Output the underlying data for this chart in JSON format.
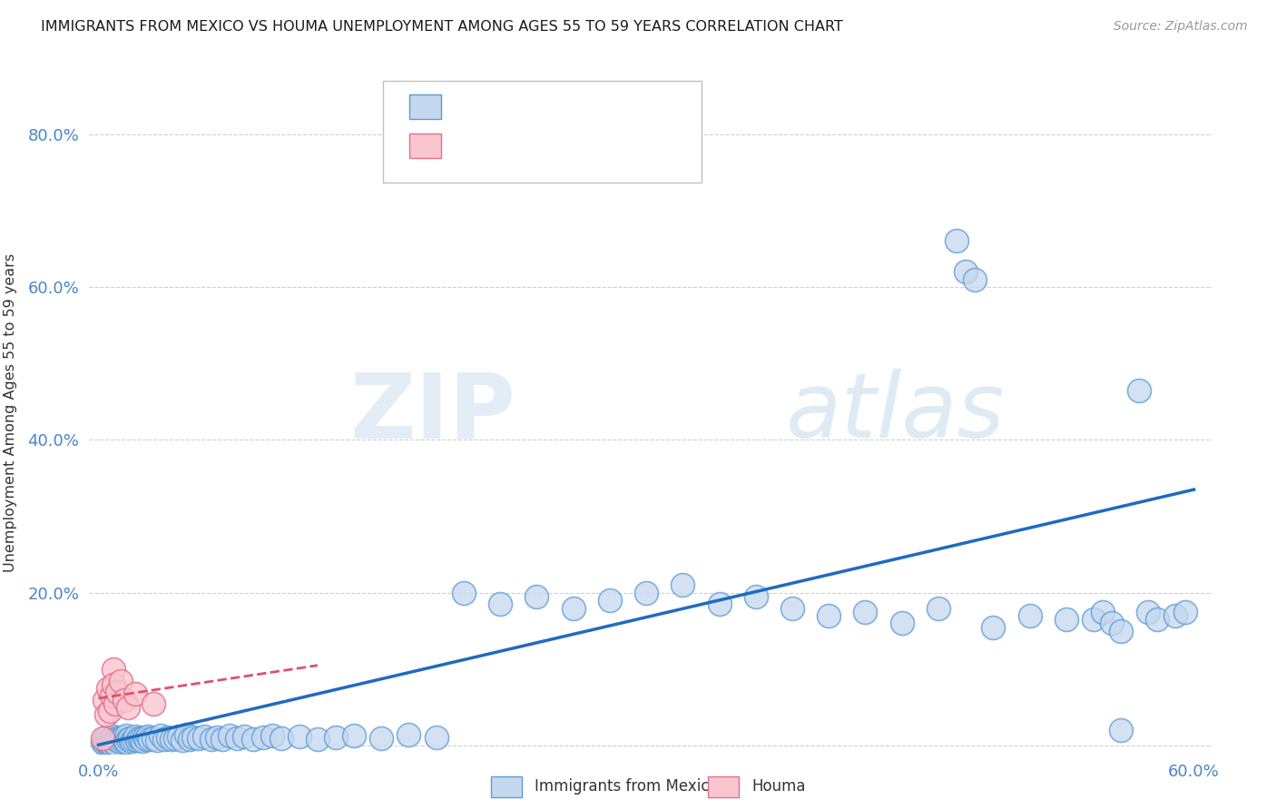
{
  "title": "IMMIGRANTS FROM MEXICO VS HOUMA UNEMPLOYMENT AMONG AGES 55 TO 59 YEARS CORRELATION CHART",
  "source": "Source: ZipAtlas.com",
  "xlabel_blue": "Immigrants from Mexico",
  "xlabel_pink": "Houma",
  "ylabel": "Unemployment Among Ages 55 to 59 years",
  "xlim": [
    -0.005,
    0.61
  ],
  "ylim": [
    -0.01,
    0.88
  ],
  "xticks": [
    0.0,
    0.1,
    0.2,
    0.3,
    0.4,
    0.5,
    0.6
  ],
  "yticks": [
    0.0,
    0.2,
    0.4,
    0.6,
    0.8
  ],
  "blue_color": "#c5d8f0",
  "blue_edge_color": "#5b9bd5",
  "pink_color": "#f9c6d0",
  "pink_edge_color": "#e07090",
  "blue_line_color": "#1f6bbf",
  "pink_line_color": "#e05070",
  "tick_color": "#4a86c8",
  "grid_color": "#d0d0d0",
  "watermark_color": "#dce8f4",
  "background": "#ffffff",
  "blue_trend": [
    0.0,
    0.001,
    0.6,
    0.335
  ],
  "pink_trend": [
    0.0,
    0.062,
    0.12,
    0.105
  ],
  "blue_x": [
    0.002,
    0.003,
    0.003,
    0.004,
    0.004,
    0.004,
    0.005,
    0.005,
    0.005,
    0.005,
    0.006,
    0.006,
    0.007,
    0.007,
    0.008,
    0.008,
    0.009,
    0.009,
    0.01,
    0.01,
    0.011,
    0.012,
    0.013,
    0.014,
    0.015,
    0.015,
    0.016,
    0.017,
    0.018,
    0.019,
    0.02,
    0.021,
    0.022,
    0.023,
    0.024,
    0.025,
    0.026,
    0.027,
    0.028,
    0.03,
    0.032,
    0.034,
    0.036,
    0.038,
    0.04,
    0.042,
    0.044,
    0.046,
    0.048,
    0.05,
    0.052,
    0.055,
    0.058,
    0.062,
    0.065,
    0.068,
    0.072,
    0.076,
    0.08,
    0.085,
    0.09,
    0.095,
    0.1,
    0.11,
    0.12,
    0.13,
    0.14,
    0.155,
    0.17,
    0.185,
    0.2,
    0.22,
    0.24,
    0.26,
    0.28,
    0.3,
    0.32,
    0.34,
    0.36,
    0.38,
    0.4,
    0.42,
    0.44,
    0.46,
    0.47,
    0.475,
    0.48,
    0.49,
    0.51,
    0.53,
    0.545,
    0.55,
    0.555,
    0.56,
    0.56,
    0.57,
    0.575,
    0.58,
    0.59,
    0.595
  ],
  "blue_y": [
    0.005,
    0.008,
    0.003,
    0.006,
    0.01,
    0.004,
    0.007,
    0.012,
    0.003,
    0.005,
    0.008,
    0.004,
    0.009,
    0.006,
    0.012,
    0.005,
    0.008,
    0.003,
    0.01,
    0.007,
    0.006,
    0.009,
    0.011,
    0.007,
    0.013,
    0.005,
    0.008,
    0.01,
    0.006,
    0.009,
    0.012,
    0.007,
    0.01,
    0.008,
    0.006,
    0.011,
    0.008,
    0.012,
    0.009,
    0.01,
    0.007,
    0.013,
    0.009,
    0.011,
    0.008,
    0.01,
    0.012,
    0.007,
    0.014,
    0.009,
    0.011,
    0.01,
    0.012,
    0.008,
    0.011,
    0.009,
    0.013,
    0.01,
    0.012,
    0.008,
    0.011,
    0.013,
    0.01,
    0.012,
    0.009,
    0.011,
    0.013,
    0.01,
    0.014,
    0.011,
    0.2,
    0.185,
    0.195,
    0.18,
    0.19,
    0.2,
    0.21,
    0.185,
    0.195,
    0.18,
    0.17,
    0.175,
    0.16,
    0.18,
    0.66,
    0.62,
    0.61,
    0.155,
    0.17,
    0.165,
    0.165,
    0.175,
    0.16,
    0.15,
    0.02,
    0.465,
    0.175,
    0.165,
    0.17,
    0.175
  ],
  "pink_x": [
    0.002,
    0.003,
    0.004,
    0.005,
    0.006,
    0.007,
    0.008,
    0.008,
    0.009,
    0.01,
    0.012,
    0.014,
    0.016,
    0.02,
    0.03
  ],
  "pink_y": [
    0.01,
    0.06,
    0.04,
    0.075,
    0.045,
    0.065,
    0.1,
    0.08,
    0.055,
    0.07,
    0.085,
    0.06,
    0.05,
    0.068,
    0.055
  ]
}
